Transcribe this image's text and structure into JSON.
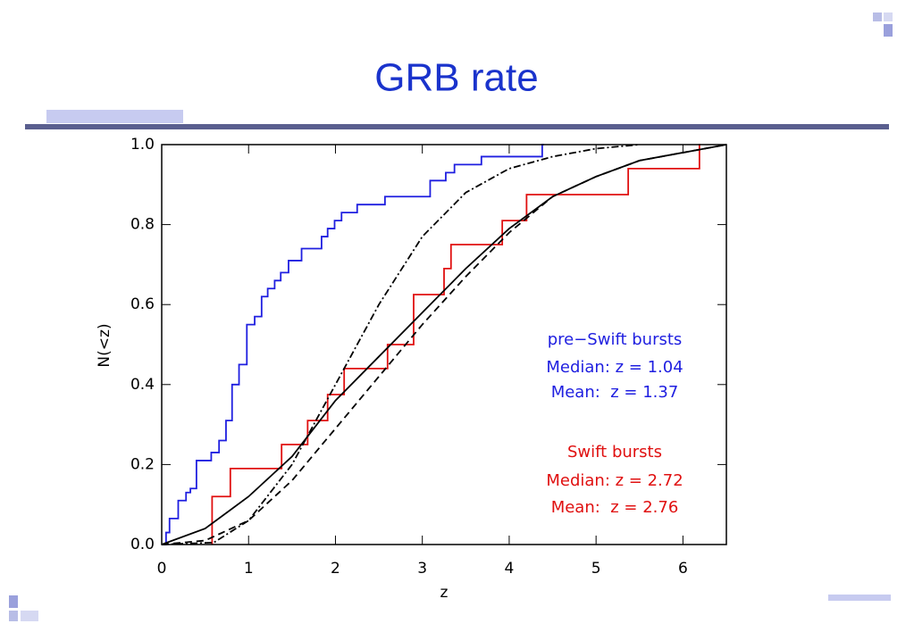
{
  "slide": {
    "title": "GRB rate"
  },
  "chart_data": {
    "type": "line",
    "xlabel": "z",
    "ylabel": "N(<z)",
    "xlim": [
      0,
      6.5
    ],
    "ylim": [
      0,
      1.0
    ],
    "xticks": [
      0,
      1,
      2,
      3,
      4,
      5,
      6
    ],
    "yticks": [
      {
        "value": 0,
        "label": "0.0"
      },
      0.2,
      0.4,
      0.6,
      0.8,
      {
        "value": 1,
        "label": "1.0"
      }
    ],
    "series": [
      {
        "color": "#1f1fe0",
        "step": true,
        "x": [
          0,
          0.05,
          0.09,
          0.19,
          0.28,
          0.33,
          0.4,
          0.57,
          0.66,
          0.74,
          0.81,
          0.89,
          0.98,
          1.07,
          1.15,
          1.22,
          1.3,
          1.37,
          1.46,
          1.61,
          1.84,
          1.91,
          1.99,
          2.07,
          2.25,
          2.57,
          3.09,
          3.27,
          3.37,
          3.68,
          4.38,
          4.4
        ],
        "values": [
          0,
          0.03,
          0.065,
          0.11,
          0.13,
          0.14,
          0.21,
          0.23,
          0.26,
          0.31,
          0.4,
          0.45,
          0.55,
          0.57,
          0.62,
          0.64,
          0.66,
          0.68,
          0.71,
          0.74,
          0.77,
          0.79,
          0.81,
          0.83,
          0.85,
          0.87,
          0.91,
          0.93,
          0.95,
          0.97,
          1.0,
          1.0
        ]
      },
      {
        "color": "#e01010",
        "step": true,
        "x": [
          0.58,
          0.58,
          0.79,
          1.38,
          1.68,
          1.91,
          2.1,
          2.6,
          2.9,
          3.25,
          3.33,
          3.92,
          4.2,
          5.37,
          6.19,
          6.2
        ],
        "values": [
          0,
          0.12,
          0.19,
          0.25,
          0.31,
          0.375,
          0.44,
          0.5,
          0.625,
          0.69,
          0.75,
          0.81,
          0.875,
          0.94,
          1.0,
          1.0
        ]
      },
      {
        "color": "#000000",
        "dash": "none",
        "x": [
          0,
          0.5,
          1,
          1.5,
          2,
          2.5,
          3,
          3.5,
          4,
          4.5,
          5,
          5.5,
          6,
          6.5
        ],
        "values": [
          0,
          0.04,
          0.12,
          0.22,
          0.36,
          0.47,
          0.58,
          0.69,
          0.79,
          0.87,
          0.92,
          0.96,
          0.98,
          1.0
        ]
      },
      {
        "color": "#000000",
        "dash": "8 5",
        "x": [
          0,
          0.5,
          1,
          1.5,
          2,
          2.5,
          3,
          3.5,
          4,
          4.5,
          5,
          5.5,
          6,
          6.5
        ],
        "values": [
          0,
          0.01,
          0.06,
          0.16,
          0.29,
          0.42,
          0.55,
          0.67,
          0.78,
          0.87,
          0.92,
          0.96,
          0.98,
          1.0
        ]
      },
      {
        "color": "#000000",
        "dash": "8 3 2 3",
        "x": [
          0,
          0.6,
          1,
          1.5,
          2,
          2.5,
          3,
          3.5,
          4,
          4.5,
          5,
          5.5
        ],
        "values": [
          0,
          0.005,
          0.06,
          0.2,
          0.4,
          0.6,
          0.77,
          0.88,
          0.94,
          0.97,
          0.99,
          1.0
        ]
      }
    ],
    "annotations": [
      {
        "text": "pre−Swift bursts",
        "color": "#1f1fe0"
      },
      {
        "text": "Median: z = 1.04",
        "color": "#1f1fe0"
      },
      {
        "text": "Mean:  z = 1.37",
        "color": "#1f1fe0"
      },
      {
        "text": "Swift bursts",
        "color": "#e01010"
      },
      {
        "text": "Median: z = 2.72",
        "color": "#e01010"
      },
      {
        "text": "Mean:  z = 2.76",
        "color": "#e01010"
      }
    ]
  }
}
